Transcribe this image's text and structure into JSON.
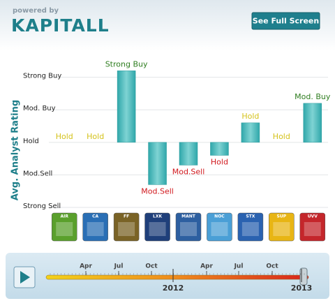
{
  "header": {
    "powered_by": "powered by",
    "logo": "KAPITALL",
    "button": "See Full Screen"
  },
  "chart_data": {
    "type": "bar",
    "y_label": "Avg. Analyst Rating",
    "categories": [
      "AIR",
      "CA",
      "FF",
      "LXK",
      "MANT",
      "NOC",
      "STX",
      "SUP",
      "UVV"
    ],
    "values": [
      0,
      0,
      2.2,
      -1.3,
      -0.7,
      -0.4,
      0.6,
      0,
      1.2
    ],
    "value_labels": [
      "Hold",
      "Hold",
      "Strong Buy",
      "Mod.Sell",
      "Mod.Sell",
      "Hold",
      "Hold",
      "Hold",
      "Mod. Buy"
    ],
    "color": "#48b9bb",
    "icon_colors": [
      "#5aa02c",
      "#2a6fb5",
      "#7a6326",
      "#1f3f7a",
      "#2d5fa0",
      "#4a9fd6",
      "#2a62b0",
      "#e8b514",
      "#c4262b"
    ],
    "ylim": [
      -2,
      2.4
    ],
    "yticks": [
      {
        "value": 2,
        "label": "Strong Buy"
      },
      {
        "value": 1,
        "label": "Mod. Buy"
      },
      {
        "value": 0,
        "label": "Hold"
      },
      {
        "value": -1,
        "label": "Mod.Sell"
      },
      {
        "value": -2,
        "label": "Strong Sell"
      }
    ],
    "grid": true
  },
  "timeline": {
    "labels": [
      "Apr",
      "Jul",
      "Oct",
      "Apr",
      "Jul",
      "Oct"
    ],
    "years": [
      "2012",
      "2013"
    ]
  }
}
